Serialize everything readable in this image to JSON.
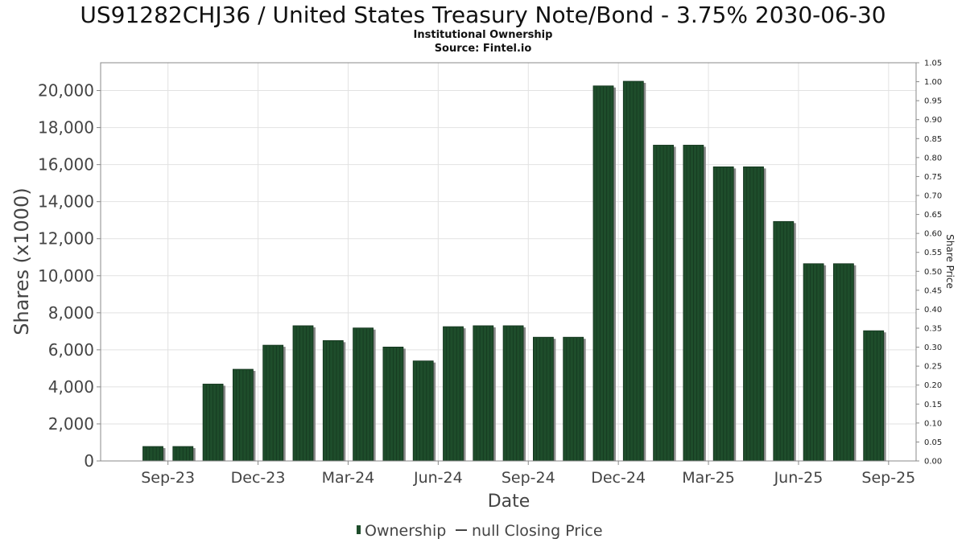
{
  "chart_data": {
    "type": "bar",
    "title": "US91282CHJ36 / United States Treasury Note/Bond - 3.75% 2030-06-30",
    "subtitle": "Institutional Ownership",
    "source": "Source: Fintel.io",
    "xlabel": "Date",
    "ylabel": "Shares (x1000)",
    "y2label": "Share Price",
    "ylim": [
      0,
      21500
    ],
    "yticks": [
      0,
      2000,
      4000,
      6000,
      8000,
      10000,
      12000,
      14000,
      16000,
      18000,
      20000
    ],
    "ytick_labels": [
      "0",
      "2,000",
      "4,000",
      "6,000",
      "8,000",
      "10,000",
      "12,000",
      "14,000",
      "16,000",
      "18,000",
      "20,000"
    ],
    "y2lim": [
      0,
      1.05
    ],
    "y2ticks": [
      "0.00",
      "0.05",
      "0.10",
      "0.15",
      "0.20",
      "0.25",
      "0.30",
      "0.35",
      "0.40",
      "0.45",
      "0.50",
      "0.55",
      "0.60",
      "0.65",
      "0.70",
      "0.75",
      "0.80",
      "0.85",
      "0.90",
      "0.95",
      "1.00",
      "1.05"
    ],
    "xticks": [
      "Sep-23",
      "Dec-23",
      "Mar-24",
      "Jun-24",
      "Sep-24",
      "Dec-24",
      "Mar-25",
      "Jun-25",
      "Sep-25"
    ],
    "xtick_positions": [
      1.5,
      4.5,
      7.5,
      10.5,
      13.5,
      16.5,
      19.5,
      22.5,
      25.5
    ],
    "grid": true,
    "legend_position": "bottom-center",
    "legend": [
      {
        "label": "Ownership",
        "color": "#1e4d2b"
      },
      {
        "label": "null Closing Price",
        "color": "#444444"
      }
    ],
    "series": [
      {
        "name": "Ownership",
        "color": "#1e4d2b",
        "values": [
          780,
          780,
          4150,
          4950,
          6250,
          7300,
          6500,
          7180,
          6150,
          5400,
          7250,
          7300,
          7300,
          6680,
          6680,
          20250,
          20500,
          17050,
          17050,
          15880,
          15880,
          12930,
          10650,
          10650,
          7030
        ]
      }
    ]
  }
}
